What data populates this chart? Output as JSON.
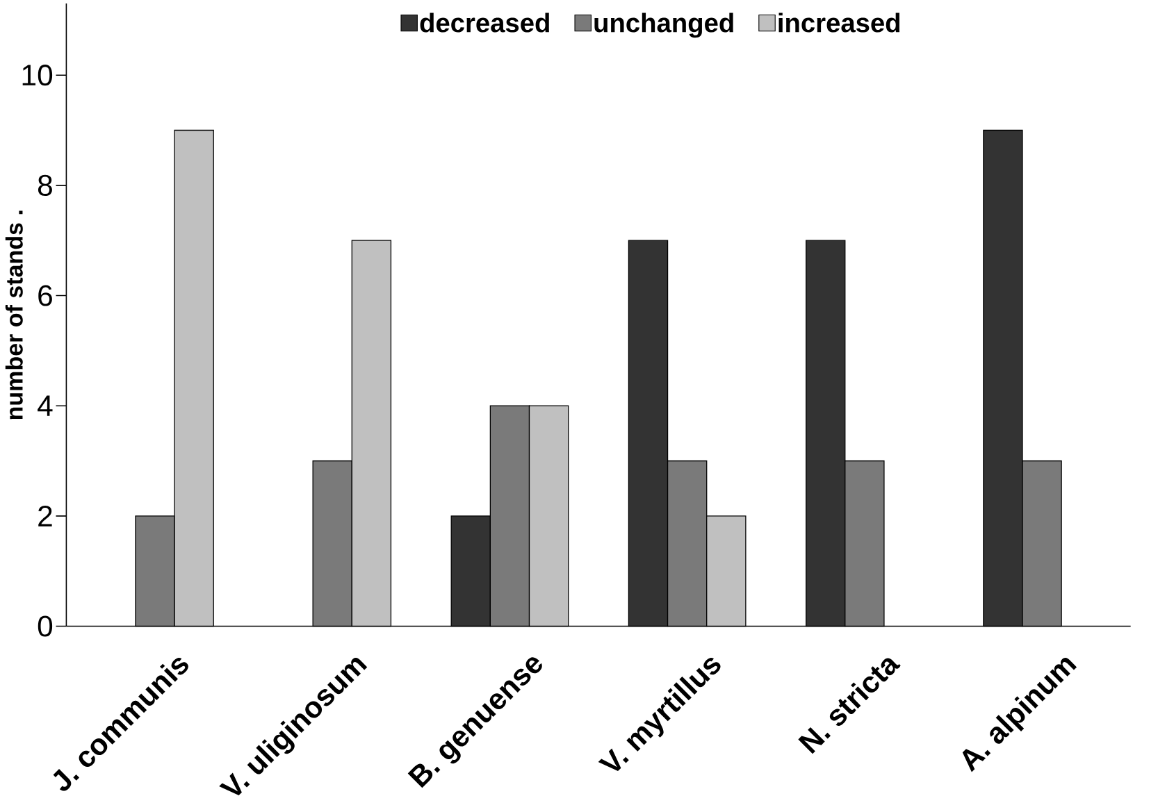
{
  "chart_data": {
    "type": "bar",
    "ylabel": "number of stands .",
    "categories": [
      "J. communis",
      "V. uliginosum",
      "B. genuense",
      "V. myrtillus",
      "N. stricta",
      "A. alpinum"
    ],
    "series": [
      {
        "name": "decreased",
        "color": "#333333",
        "values": [
          0,
          0,
          2,
          7,
          7,
          9
        ]
      },
      {
        "name": "unchanged",
        "color": "#7a7a7a",
        "values": [
          2,
          3,
          4,
          3,
          3,
          3
        ]
      },
      {
        "name": "increased",
        "color": "#c0c0c0",
        "values": [
          9,
          7,
          4,
          2,
          0,
          0
        ]
      }
    ],
    "ylim": [
      0,
      11.3
    ],
    "yticks": [
      0,
      2,
      4,
      6,
      8,
      10
    ],
    "legend": "top",
    "grid": false
  }
}
